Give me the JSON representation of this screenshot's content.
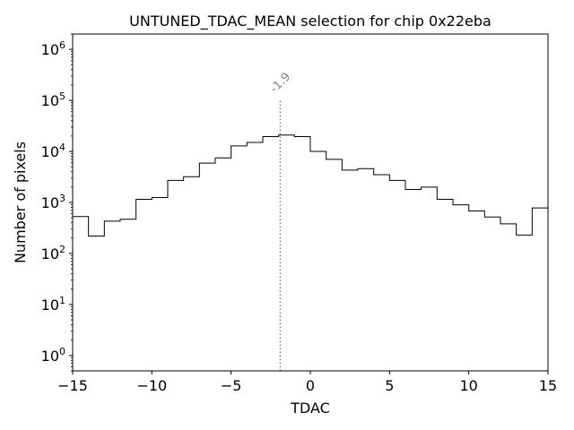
{
  "chart_data": {
    "type": "histogram",
    "title": "UNTUNED_TDAC_MEAN selection for chip 0x22eba",
    "xlabel": "TDAC",
    "ylabel": "Number of pixels",
    "xlim": [
      -15,
      15
    ],
    "yscale": "log",
    "ylim": [
      0.5,
      2000000
    ],
    "x_ticks": [
      -15,
      -10,
      -5,
      0,
      5,
      10,
      15
    ],
    "x_tick_labels": [
      "−15",
      "−10",
      "−5",
      "0",
      "5",
      "10",
      "15"
    ],
    "y_ticks": [
      1,
      10,
      100,
      1000,
      10000,
      100000,
      1000000
    ],
    "y_tick_labels": [
      {
        "base": "10",
        "exp": "0"
      },
      {
        "base": "10",
        "exp": "1"
      },
      {
        "base": "10",
        "exp": "2"
      },
      {
        "base": "10",
        "exp": "3"
      },
      {
        "base": "10",
        "exp": "4"
      },
      {
        "base": "10",
        "exp": "5"
      },
      {
        "base": "10",
        "exp": "6"
      }
    ],
    "bin_edges": [
      -15,
      -14,
      -13,
      -12,
      -11,
      -10,
      -9,
      -8,
      -7,
      -6,
      -5,
      -4,
      -3,
      -2,
      -1,
      0,
      1,
      2,
      3,
      4,
      5,
      6,
      7,
      8,
      9,
      10,
      11,
      12,
      13,
      14,
      15
    ],
    "counts": [
      530,
      220,
      430,
      470,
      1150,
      1250,
      2700,
      3200,
      5900,
      7500,
      12800,
      15000,
      19500,
      21000,
      19500,
      10000,
      7000,
      4300,
      4600,
      3500,
      2700,
      1800,
      2000,
      1150,
      900,
      680,
      520,
      380,
      230,
      780
    ],
    "marker": {
      "x": -1.9,
      "y_top": 100000,
      "label": "-1.9",
      "style": "dotted",
      "color": "#808080"
    }
  }
}
